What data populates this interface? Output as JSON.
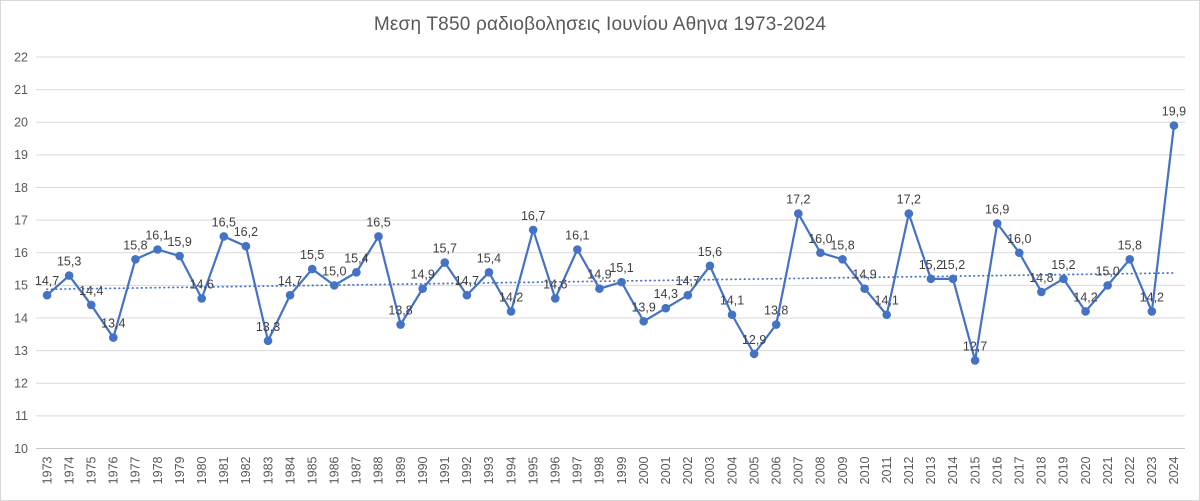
{
  "chart_data": {
    "type": "line",
    "title": "Μεση Τ850 ραδιοβολησεις Ιουνίου Αθηνα 1973-2024",
    "xlabel": "",
    "ylabel": "",
    "ylim": [
      10,
      22
    ],
    "yticks": [
      10,
      11,
      12,
      13,
      14,
      15,
      16,
      17,
      18,
      19,
      20,
      21,
      22
    ],
    "grid": "horizontal",
    "legend_position": "none",
    "categories": [
      "1973",
      "1974",
      "1975",
      "1976",
      "1977",
      "1978",
      "1979",
      "1980",
      "1981",
      "1982",
      "1983",
      "1984",
      "1985",
      "1986",
      "1987",
      "1988",
      "1989",
      "1990",
      "1991",
      "1992",
      "1993",
      "1994",
      "1995",
      "1996",
      "1997",
      "1998",
      "1999",
      "2000",
      "2001",
      "2002",
      "2003",
      "2004",
      "2005",
      "2006",
      "2007",
      "2008",
      "2009",
      "2010",
      "2011",
      "2012",
      "2013",
      "2014",
      "2015",
      "2016",
      "2017",
      "2018",
      "2019",
      "2020",
      "2021",
      "2022",
      "2023",
      "2024"
    ],
    "values": [
      14.7,
      15.3,
      14.4,
      13.4,
      15.8,
      16.1,
      15.9,
      14.6,
      16.5,
      16.2,
      13.3,
      14.7,
      15.5,
      15.0,
      15.4,
      16.5,
      13.8,
      14.9,
      15.7,
      14.7,
      15.4,
      14.2,
      16.7,
      14.6,
      16.1,
      14.9,
      15.1,
      13.9,
      14.3,
      14.7,
      15.6,
      14.1,
      12.9,
      13.8,
      17.2,
      16.0,
      15.8,
      14.9,
      14.1,
      17.2,
      15.2,
      15.2,
      12.7,
      16.9,
      16.0,
      14.8,
      15.2,
      14.2,
      15.0,
      15.8,
      14.2,
      19.9
    ],
    "point_labels": [
      "14,7",
      "15,3",
      "14,4",
      "13,4",
      "15,8",
      "16,1",
      "15,9",
      "14,6",
      "16,5",
      "16,2",
      "13,3",
      "14,7",
      "15,5",
      "15,0",
      "15,4",
      "16,5",
      "13,8",
      "14,9",
      "15,7",
      "14,7",
      "15,4",
      "14,2",
      "16,7",
      "14,6",
      "16,1",
      "14,9",
      "15,1",
      "13,9",
      "14,3",
      "14,7",
      "15,6",
      "14,1",
      "12,9",
      "13,8",
      "17,2",
      "16,0",
      "15,8",
      "14,9",
      "14,1",
      "17,2",
      "15,2",
      "15,2",
      "12,7",
      "16,9",
      "16,0",
      "14,8",
      "15,2",
      "14,2",
      "15,0",
      "15,8",
      "14,2",
      "19,9"
    ],
    "trendline": {
      "style": "dotted",
      "start_value": 14.88,
      "end_value": 15.38
    }
  },
  "colors": {
    "series": "#4472C4",
    "marker": "#4472C4",
    "trendline": "#4472C4",
    "point_label": "#404040",
    "axis_text": "#595959",
    "title_text": "#595959",
    "gridline": "#D9D9D9",
    "axis_line": "#C6C6C6",
    "frame_border": "#D9D9D9",
    "background": "#FFFFFF"
  }
}
